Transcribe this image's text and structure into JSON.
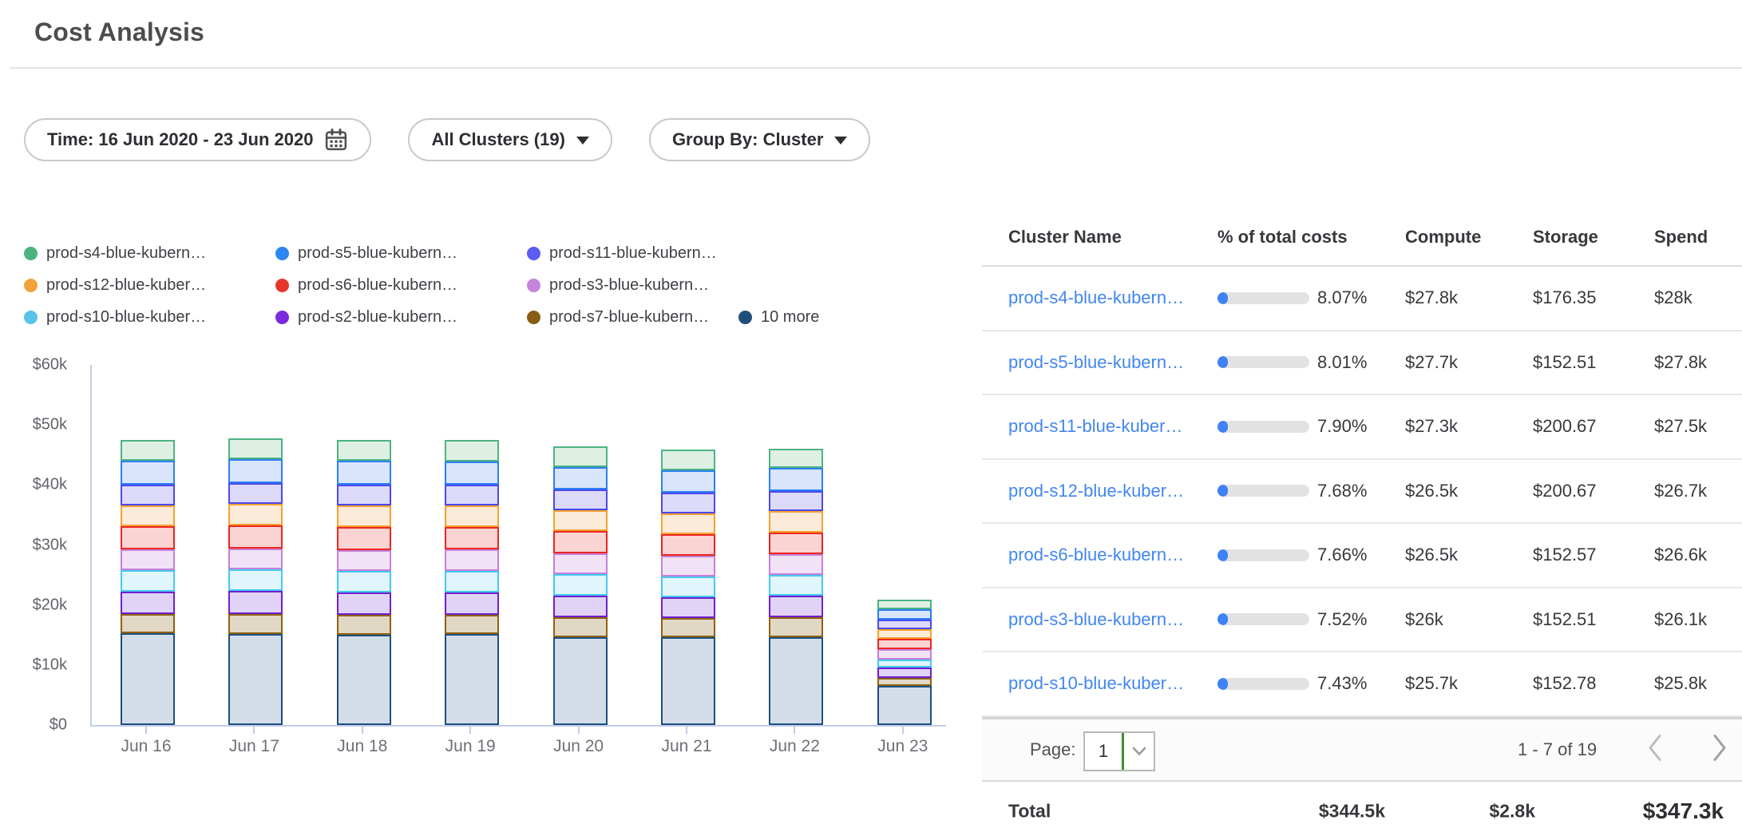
{
  "page": {
    "title": "Cost Analysis"
  },
  "filters": {
    "time_label": "Time: 16 Jun 2020 - 23 Jun 2020",
    "clusters_label": "All Clusters (19)",
    "group_by_label": "Group By: Cluster"
  },
  "chart_data": {
    "type": "bar",
    "stacked": true,
    "title": "",
    "xlabel": "",
    "ylabel": "",
    "x": [
      "Jun 16",
      "Jun 17",
      "Jun 18",
      "Jun 19",
      "Jun 20",
      "Jun 21",
      "Jun 22",
      "Jun 23"
    ],
    "ylim": [
      0,
      60000
    ],
    "ytick_labels": [
      "$0",
      "$10k",
      "$20k",
      "$30k",
      "$40k",
      "$50k",
      "$60k"
    ],
    "grid": false,
    "legend_position": "top",
    "series": [
      {
        "name": "10 more",
        "dot": "#1f4e79",
        "border": "#1d507f",
        "fill": "#d3dde9",
        "values": [
          15300,
          15200,
          15100,
          15200,
          14700,
          14600,
          14700,
          6500
        ]
      },
      {
        "name": "prod-s7-blue-kubern…",
        "dot": "#8a5d14",
        "border": "#90610f",
        "fill": "#e1d7c5",
        "values": [
          3200,
          3300,
          3200,
          3200,
          3300,
          3200,
          3300,
          1300
        ]
      },
      {
        "name": "prod-s2-blue-kubern…",
        "dot": "#7a2bdb",
        "border": "#6e20d0",
        "fill": "#e1d3f6",
        "values": [
          3700,
          3800,
          3800,
          3700,
          3600,
          3500,
          3600,
          1800
        ]
      },
      {
        "name": "prod-s10-blue-kuber…",
        "dot": "#58c4ea",
        "border": "#44c8f0",
        "fill": "#e0f5fc",
        "values": [
          3600,
          3600,
          3600,
          3600,
          3500,
          3400,
          3400,
          1300
        ]
      },
      {
        "name": "prod-s3-blue-kubern…",
        "dot": "#c583dc",
        "border": "#c580d8",
        "fill": "#f1e2f7",
        "values": [
          3500,
          3500,
          3500,
          3600,
          3500,
          3500,
          3500,
          1700
        ]
      },
      {
        "name": "prod-s6-blue-kubern…",
        "dot": "#e8352c",
        "border": "#ee2621",
        "fill": "#fad4d2",
        "values": [
          3800,
          3800,
          3800,
          3700,
          3700,
          3600,
          3600,
          1800
        ]
      },
      {
        "name": "prod-s12-blue-kuber…",
        "dot": "#f2a33c",
        "border": "#f5a22e",
        "fill": "#fcebd9",
        "values": [
          3500,
          3600,
          3600,
          3600,
          3500,
          3500,
          3500,
          1600
        ]
      },
      {
        "name": "prod-s11-blue-kubern…",
        "dot": "#5c5cf0",
        "border": "#4b48ee",
        "fill": "#dcdaf8",
        "values": [
          3400,
          3500,
          3400,
          3400,
          3400,
          3400,
          3400,
          1600
        ]
      },
      {
        "name": "prod-s5-blue-kubern…",
        "dot": "#2e86f0",
        "border": "#2b7ff2",
        "fill": "#d9e5fa",
        "values": [
          4000,
          4000,
          4000,
          3900,
          3800,
          3800,
          3800,
          1700
        ]
      },
      {
        "name": "prod-s4-blue-kubern…",
        "dot": "#4db381",
        "border": "#4db381",
        "fill": "#def0e4",
        "values": [
          3500,
          3500,
          3500,
          3600,
          3500,
          3400,
          3300,
          1600
        ]
      }
    ],
    "legend_rows": [
      [
        {
          "label": "prod-s4-blue-kubern…",
          "color": "#4db381"
        },
        {
          "label": "prod-s5-blue-kubern…",
          "color": "#2e86f0"
        },
        {
          "label": "prod-s11-blue-kubern…",
          "color": "#5c5cf0"
        }
      ],
      [
        {
          "label": "prod-s12-blue-kuber…",
          "color": "#f2a33c"
        },
        {
          "label": "prod-s6-blue-kubern…",
          "color": "#e8352c"
        },
        {
          "label": "prod-s3-blue-kubern…",
          "color": "#c583dc"
        }
      ],
      [
        {
          "label": "prod-s10-blue-kuber…",
          "color": "#58c4ea"
        },
        {
          "label": "prod-s2-blue-kubern…",
          "color": "#7a2bdb"
        },
        {
          "label": "prod-s7-blue-kubern…",
          "color": "#8a5d14"
        },
        {
          "label": "10 more",
          "color": "#1f4e79"
        }
      ]
    ]
  },
  "table": {
    "headers": [
      "Cluster Name",
      "% of total costs",
      "Compute",
      "Storage",
      "Spend"
    ],
    "link_color": "#4186f0",
    "progress_color": "#3f82f4",
    "rows": [
      {
        "name": "prod-s4-blue-kubern…",
        "pct": "8.07%",
        "pct_value": 8.07,
        "compute": "$27.8k",
        "storage": "$176.35",
        "spend": "$28k"
      },
      {
        "name": "prod-s5-blue-kubern…",
        "pct": "8.01%",
        "pct_value": 8.01,
        "compute": "$27.7k",
        "storage": "$152.51",
        "spend": "$27.8k"
      },
      {
        "name": "prod-s11-blue-kuber…",
        "pct": "7.90%",
        "pct_value": 7.9,
        "compute": "$27.3k",
        "storage": "$200.67",
        "spend": "$27.5k"
      },
      {
        "name": "prod-s12-blue-kuber…",
        "pct": "7.68%",
        "pct_value": 7.68,
        "compute": "$26.5k",
        "storage": "$200.67",
        "spend": "$26.7k"
      },
      {
        "name": "prod-s6-blue-kubern…",
        "pct": "7.66%",
        "pct_value": 7.66,
        "compute": "$26.5k",
        "storage": "$152.57",
        "spend": "$26.6k"
      },
      {
        "name": "prod-s3-blue-kubern…",
        "pct": "7.52%",
        "pct_value": 7.52,
        "compute": "$26k",
        "storage": "$152.51",
        "spend": "$26.1k"
      },
      {
        "name": "prod-s10-blue-kuber…",
        "pct": "7.43%",
        "pct_value": 7.43,
        "compute": "$25.7k",
        "storage": "$152.78",
        "spend": "$25.8k"
      }
    ],
    "pagination": {
      "page_label": "Page:",
      "page_value": "1",
      "range": "1 - 7 of 19"
    },
    "totals": {
      "label": "Total",
      "compute": "$344.5k",
      "storage": "$2.8k",
      "spend": "$347.3k"
    }
  }
}
